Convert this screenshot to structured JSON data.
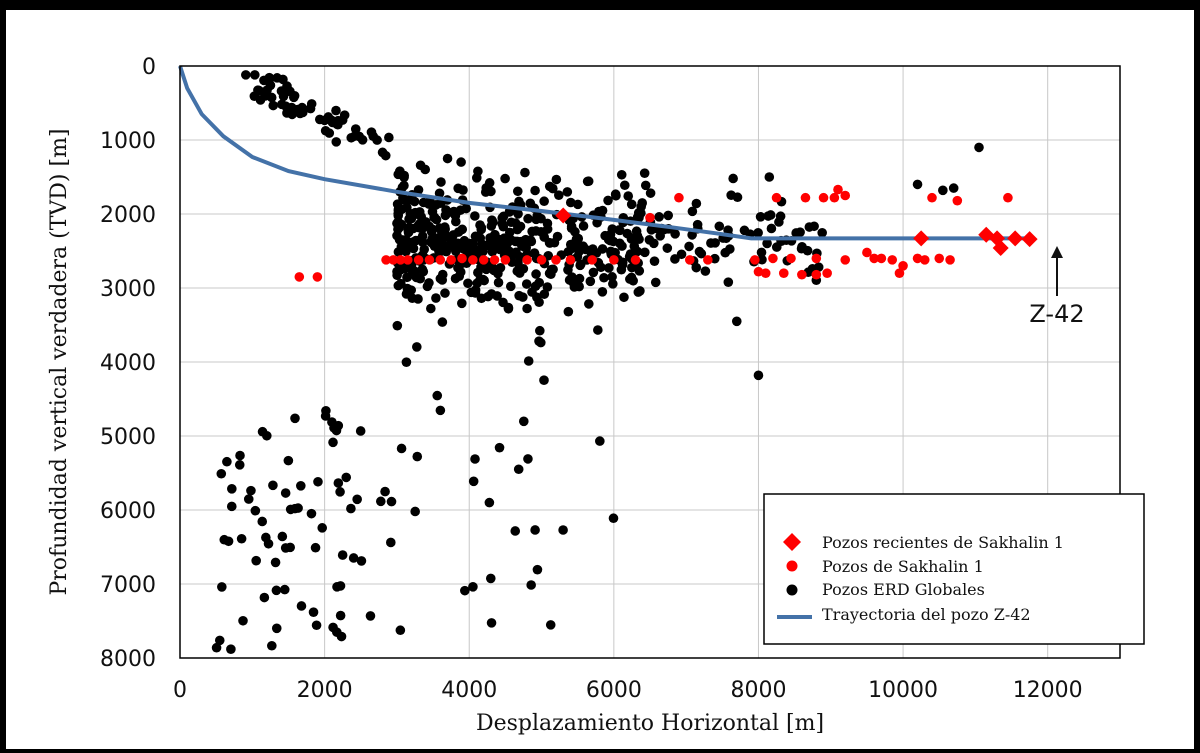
{
  "chart_data": {
    "type": "scatter",
    "xlabel": "Desplazamiento Horizontal [m]",
    "ylabel": "Profundidad vertical verdadera (TVD) [m]",
    "xlim": [
      0,
      13000
    ],
    "ylim": [
      0,
      8000
    ],
    "y_inverted": true,
    "x_ticks": [
      0,
      2000,
      4000,
      6000,
      8000,
      10000,
      12000
    ],
    "y_ticks": [
      0,
      1000,
      2000,
      3000,
      4000,
      5000,
      6000,
      7000,
      8000
    ],
    "grid": "vertical-and-horizontal",
    "legend_position": "bottom-right",
    "series": [
      {
        "name": "Pozos recientes de Sakhalin 1",
        "marker": "diamond",
        "color": "#ff0000",
        "points": [
          [
            5300,
            2020
          ],
          [
            10250,
            2330
          ],
          [
            11150,
            2280
          ],
          [
            11300,
            2330
          ],
          [
            11350,
            2460
          ],
          [
            11550,
            2330
          ],
          [
            11750,
            2340
          ]
        ]
      },
      {
        "name": "Pozos de Sakhalin 1",
        "marker": "circle",
        "color": "#ff0000",
        "points": [
          [
            1650,
            2850
          ],
          [
            1900,
            2850
          ],
          [
            2850,
            2620
          ],
          [
            2950,
            2620
          ],
          [
            3050,
            2620
          ],
          [
            3150,
            2620
          ],
          [
            3300,
            2620
          ],
          [
            3450,
            2620
          ],
          [
            3600,
            2620
          ],
          [
            3750,
            2620
          ],
          [
            3900,
            2600
          ],
          [
            4050,
            2620
          ],
          [
            4200,
            2620
          ],
          [
            4350,
            2620
          ],
          [
            4500,
            2620
          ],
          [
            4800,
            2620
          ],
          [
            5000,
            2620
          ],
          [
            5200,
            2620
          ],
          [
            5400,
            2620
          ],
          [
            5700,
            2620
          ],
          [
            6000,
            2620
          ],
          [
            6300,
            2620
          ],
          [
            6500,
            2050
          ],
          [
            6900,
            1780
          ],
          [
            7050,
            2620
          ],
          [
            7300,
            2620
          ],
          [
            7950,
            2620
          ],
          [
            8000,
            2780
          ],
          [
            8100,
            2800
          ],
          [
            8200,
            2600
          ],
          [
            8250,
            1780
          ],
          [
            8350,
            2800
          ],
          [
            8450,
            2600
          ],
          [
            8600,
            2820
          ],
          [
            8650,
            1780
          ],
          [
            8800,
            2600
          ],
          [
            8800,
            2820
          ],
          [
            8900,
            1780
          ],
          [
            8950,
            2800
          ],
          [
            9050,
            1780
          ],
          [
            9100,
            1670
          ],
          [
            9200,
            2620
          ],
          [
            9200,
            1750
          ],
          [
            9500,
            2520
          ],
          [
            9600,
            2600
          ],
          [
            9700,
            2600
          ],
          [
            9850,
            2620
          ],
          [
            9950,
            2800
          ],
          [
            10000,
            2700
          ],
          [
            10200,
            2600
          ],
          [
            10300,
            2620
          ],
          [
            10400,
            1780
          ],
          [
            10500,
            2600
          ],
          [
            10650,
            2620
          ],
          [
            10750,
            1820
          ],
          [
            11450,
            1780
          ]
        ]
      },
      {
        "name": "Pozos ERD Globales",
        "marker": "circle",
        "color": "#000000"
      },
      {
        "name": "Trayectoria del pozo Z-42",
        "marker": "line",
        "color": "#4472a8",
        "points": [
          [
            0,
            0
          ],
          [
            100,
            300
          ],
          [
            300,
            650
          ],
          [
            600,
            950
          ],
          [
            1000,
            1230
          ],
          [
            1500,
            1420
          ],
          [
            2000,
            1530
          ],
          [
            3000,
            1700
          ],
          [
            4000,
            1850
          ],
          [
            5000,
            1960
          ],
          [
            6000,
            2080
          ],
          [
            6800,
            2180
          ],
          [
            7400,
            2260
          ],
          [
            7900,
            2330
          ],
          [
            8500,
            2330
          ],
          [
            10000,
            2330
          ],
          [
            11750,
            2330
          ]
        ]
      }
    ],
    "annotations": [
      {
        "text": "Z-42",
        "target": [
          11750,
          2340
        ]
      }
    ]
  }
}
